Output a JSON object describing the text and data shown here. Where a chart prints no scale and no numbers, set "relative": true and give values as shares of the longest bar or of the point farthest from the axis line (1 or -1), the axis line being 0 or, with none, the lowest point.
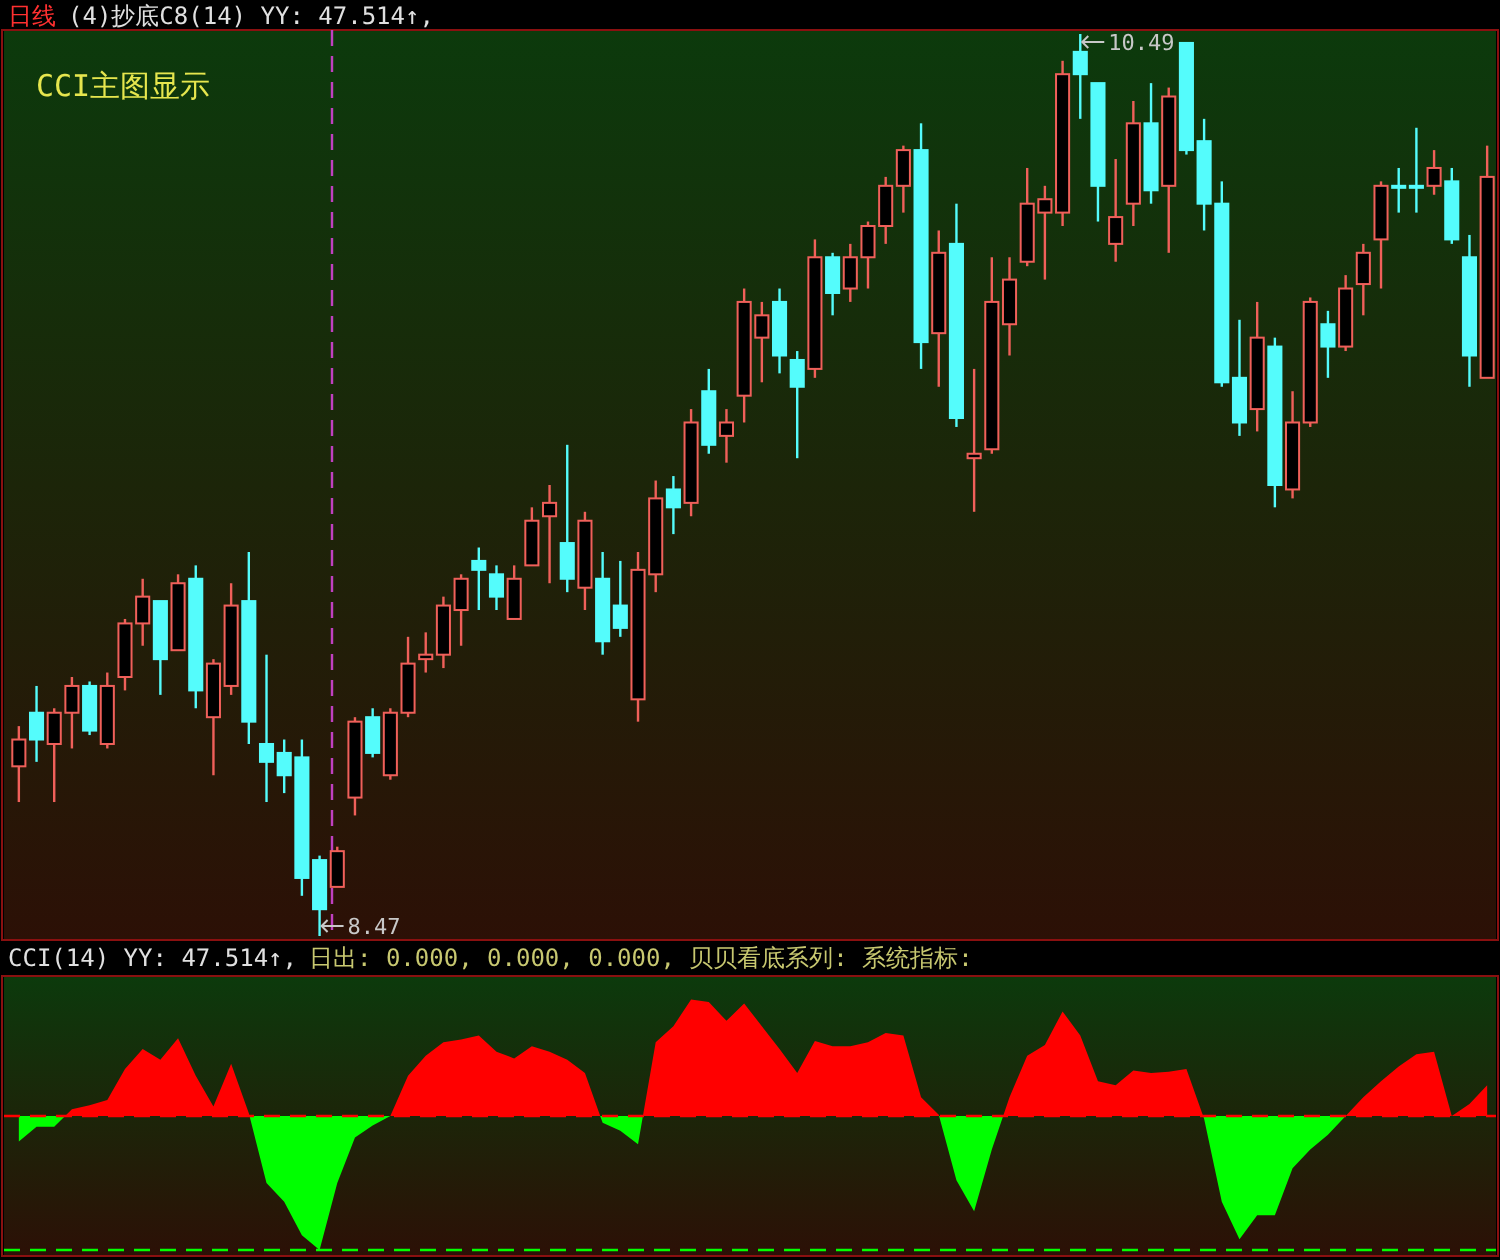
{
  "chart_data": [
    {
      "type": "candlestick",
      "title": "日线",
      "subtitle": "(4)抄底C8(14) YY: 47.514↑,",
      "categories": [
        null,
        null,
        null,
        null,
        null,
        null,
        null,
        null,
        null,
        null,
        null,
        null,
        null,
        null,
        null,
        null,
        null,
        null,
        null,
        null,
        null,
        null,
        null,
        null,
        null,
        null,
        null,
        null,
        null,
        null,
        null,
        null,
        null,
        null,
        null,
        null,
        null,
        null,
        null,
        null,
        null,
        null,
        null,
        null,
        null,
        null,
        null,
        null,
        null,
        null,
        null,
        null,
        null,
        null,
        null,
        null,
        null,
        null,
        null,
        null,
        null,
        null,
        null,
        null,
        null,
        null,
        null,
        null,
        null,
        null,
        null,
        null,
        null,
        null,
        null,
        null,
        null,
        null,
        null,
        null,
        null,
        null,
        null,
        null
      ],
      "ohlc": [
        [
          8.85,
          8.94,
          8.77,
          8.91
        ],
        [
          8.97,
          9.03,
          8.86,
          8.91
        ],
        [
          8.9,
          8.98,
          8.77,
          8.97
        ],
        [
          8.97,
          9.05,
          8.89,
          9.03
        ],
        [
          9.03,
          9.04,
          8.92,
          8.93
        ],
        [
          8.9,
          9.06,
          8.89,
          9.03
        ],
        [
          9.05,
          9.18,
          9.02,
          9.17
        ],
        [
          9.17,
          9.27,
          9.12,
          9.23
        ],
        [
          9.22,
          9.22,
          9.01,
          9.09
        ],
        [
          9.11,
          9.28,
          9.11,
          9.26
        ],
        [
          9.27,
          9.3,
          8.98,
          9.02
        ],
        [
          8.96,
          9.09,
          8.83,
          9.08
        ],
        [
          9.03,
          9.26,
          9.01,
          9.21
        ],
        [
          9.22,
          9.33,
          8.9,
          8.95
        ],
        [
          8.9,
          9.1,
          8.77,
          8.86
        ],
        [
          8.88,
          8.91,
          8.79,
          8.83
        ],
        [
          8.87,
          8.91,
          8.56,
          8.6
        ],
        [
          8.64,
          8.65,
          8.47,
          8.53
        ],
        [
          8.58,
          8.67,
          8.58,
          8.66
        ],
        [
          8.78,
          8.96,
          8.74,
          8.95
        ],
        [
          8.96,
          8.98,
          8.87,
          8.88
        ],
        [
          8.83,
          8.98,
          8.82,
          8.97
        ],
        [
          8.97,
          9.14,
          8.96,
          9.08
        ],
        [
          9.09,
          9.15,
          9.06,
          9.1
        ],
        [
          9.1,
          9.23,
          9.07,
          9.21
        ],
        [
          9.2,
          9.28,
          9.12,
          9.27
        ],
        [
          9.31,
          9.34,
          9.2,
          9.29
        ],
        [
          9.28,
          9.3,
          9.2,
          9.23
        ],
        [
          9.18,
          9.3,
          9.18,
          9.27
        ],
        [
          9.3,
          9.43,
          9.3,
          9.4
        ],
        [
          9.41,
          9.48,
          9.26,
          9.44
        ],
        [
          9.35,
          9.57,
          9.24,
          9.27
        ],
        [
          9.25,
          9.42,
          9.2,
          9.4
        ],
        [
          9.27,
          9.33,
          9.1,
          9.13
        ],
        [
          9.21,
          9.31,
          9.14,
          9.16
        ],
        [
          9.0,
          9.33,
          8.95,
          9.29
        ],
        [
          9.28,
          9.49,
          9.24,
          9.45
        ],
        [
          9.47,
          9.5,
          9.37,
          9.43
        ],
        [
          9.44,
          9.65,
          9.41,
          9.62
        ],
        [
          9.69,
          9.74,
          9.55,
          9.57
        ],
        [
          9.59,
          9.65,
          9.53,
          9.62
        ],
        [
          9.68,
          9.92,
          9.62,
          9.89
        ],
        [
          9.81,
          9.89,
          9.71,
          9.86
        ],
        [
          9.89,
          9.92,
          9.73,
          9.77
        ],
        [
          9.76,
          9.78,
          9.54,
          9.7
        ],
        [
          9.74,
          10.03,
          9.72,
          9.99
        ],
        [
          9.99,
          10.0,
          9.86,
          9.91
        ],
        [
          9.92,
          10.02,
          9.89,
          9.99
        ],
        [
          9.99,
          10.07,
          9.92,
          10.06
        ],
        [
          10.06,
          10.17,
          10.02,
          10.15
        ],
        [
          10.15,
          10.24,
          10.09,
          10.23
        ],
        [
          10.23,
          10.29,
          9.74,
          9.8
        ],
        [
          9.82,
          10.05,
          9.7,
          10.0
        ],
        [
          10.02,
          10.11,
          9.61,
          9.63
        ],
        [
          9.54,
          9.74,
          9.42,
          9.55
        ],
        [
          9.56,
          9.99,
          9.55,
          9.89
        ],
        [
          9.84,
          9.99,
          9.77,
          9.94
        ],
        [
          9.98,
          10.19,
          9.97,
          10.11
        ],
        [
          10.09,
          10.15,
          9.94,
          10.12
        ],
        [
          10.09,
          10.43,
          10.06,
          10.4
        ],
        [
          10.45,
          10.49,
          10.3,
          10.4
        ],
        [
          10.38,
          10.38,
          10.07,
          10.15
        ],
        [
          10.02,
          10.21,
          9.98,
          10.08
        ],
        [
          10.11,
          10.34,
          10.06,
          10.29
        ],
        [
          10.29,
          10.38,
          10.11,
          10.14
        ],
        [
          10.15,
          10.37,
          10.0,
          10.35
        ],
        [
          10.47,
          10.47,
          10.22,
          10.23
        ],
        [
          10.25,
          10.3,
          10.05,
          10.11
        ],
        [
          10.11,
          10.16,
          9.7,
          9.71
        ],
        [
          9.72,
          9.85,
          9.59,
          9.62
        ],
        [
          9.65,
          9.89,
          9.6,
          9.81
        ],
        [
          9.79,
          9.81,
          9.43,
          9.48
        ],
        [
          9.47,
          9.69,
          9.45,
          9.62
        ],
        [
          9.62,
          9.9,
          9.61,
          9.89
        ],
        [
          9.84,
          9.87,
          9.72,
          9.79
        ],
        [
          9.79,
          9.95,
          9.78,
          9.92
        ],
        [
          9.93,
          10.02,
          9.86,
          10.0
        ],
        [
          10.03,
          10.16,
          9.92,
          10.15
        ],
        [
          10.15,
          10.19,
          10.09,
          10.15
        ],
        [
          10.15,
          10.28,
          10.09,
          10.15
        ],
        [
          10.15,
          10.23,
          10.13,
          10.19
        ],
        [
          10.16,
          10.19,
          10.02,
          10.03
        ],
        [
          9.99,
          10.04,
          9.7,
          9.77
        ],
        [
          9.72,
          10.24,
          9.72,
          10.17
        ]
      ],
      "colors": [
        "#f0605a",
        "#54fcfc",
        "#f0605a",
        "#f0605a",
        "#54fcfc",
        "#f0605a",
        "#f0605a",
        "#f0605a",
        "#54fcfc",
        "#f0605a",
        "#54fcfc",
        "#f0605a",
        "#f0605a",
        "#54fcfc",
        "#54fcfc",
        "#54fcfc",
        "#54fcfc",
        "#54fcfc",
        "#f0605a",
        "#f0605a",
        "#54fcfc",
        "#f0605a",
        "#f0605a",
        "#f0605a",
        "#f0605a",
        "#f0605a",
        "#54fcfc",
        "#54fcfc",
        "#f0605a",
        "#f0605a",
        "#f0605a",
        "#54fcfc",
        "#f0605a",
        "#54fcfc",
        "#54fcfc",
        "#f0605a",
        "#f0605a",
        "#54fcfc",
        "#f0605a",
        "#54fcfc",
        "#f0605a",
        "#f0605a",
        "#f0605a",
        "#54fcfc",
        "#54fcfc",
        "#f0605a",
        "#54fcfc",
        "#f0605a",
        "#f0605a",
        "#f0605a",
        "#f0605a",
        "#54fcfc",
        "#f0605a",
        "#54fcfc",
        "#f0605a",
        "#f0605a",
        "#f0605a",
        "#f0605a",
        "#f0605a",
        "#f0605a",
        "#54fcfc",
        "#54fcfc",
        "#f0605a",
        "#f0605a",
        "#54fcfc",
        "#f0605a",
        "#54fcfc",
        "#54fcfc",
        "#54fcfc",
        "#54fcfc",
        "#f0605a",
        "#54fcfc",
        "#f0605a",
        "#f0605a",
        "#54fcfc",
        "#f0605a",
        "#f0605a",
        "#f0605a",
        "#54fcfc",
        "#54fcfc",
        "#f0605a",
        "#54fcfc",
        "#54fcfc",
        "#f0605a"
      ],
      "annotations": [
        "CCI主图显示",
        "10.49",
        "8.47"
      ]
    },
    {
      "type": "area",
      "relative": true,
      "title": "CCI(14) YY: 47.514↑,",
      "subtitle": "日出: 0.000, 0.000, 0.000, 贝贝看底系列: 系统指标:",
      "categories": [
        null,
        null,
        null,
        null,
        null,
        null,
        null,
        null,
        null,
        null,
        null,
        null,
        null,
        null,
        null,
        null,
        null,
        null,
        null,
        null,
        null,
        null,
        null,
        null,
        null,
        null,
        null,
        null,
        null,
        null,
        null,
        null,
        null,
        null,
        null,
        null,
        null,
        null,
        null,
        null,
        null,
        null,
        null,
        null,
        null,
        null,
        null,
        null,
        null,
        null,
        null,
        null,
        null,
        null,
        null,
        null,
        null,
        null,
        null,
        null,
        null,
        null,
        null,
        null,
        null,
        null,
        null,
        null,
        null,
        null,
        null,
        null,
        null,
        null,
        null,
        null,
        null,
        null,
        null,
        null,
        null,
        null,
        null,
        null
      ],
      "series": [
        {
          "values": [
            -0.19,
            -0.08,
            -0.08,
            0.05,
            0.08,
            0.12,
            0.35,
            0.5,
            0.42,
            0.58,
            0.3,
            0.07,
            0.39,
            0.02,
            -0.5,
            -0.64,
            -0.89,
            -1,
            -0.5,
            -0.16,
            -0.07,
            0,
            0.3,
            0.45,
            0.55,
            0.57,
            0.6,
            0.48,
            0.43,
            0.52,
            0.48,
            0.42,
            0.32,
            -0.05,
            -0.11,
            -0.21,
            0.55,
            0.67,
            0.87,
            0.85,
            0.71,
            0.84,
            0.67,
            0.5,
            0.32,
            0.56,
            0.52,
            0.52,
            0.55,
            0.62,
            0.6,
            0.14,
            0.01,
            -0.48,
            -0.71,
            -0.25,
            0.14,
            0.45,
            0.53,
            0.78,
            0.6,
            0.26,
            0.23,
            0.34,
            0.32,
            0.33,
            0.35,
            -0.02,
            -0.64,
            -0.92,
            -0.74,
            -0.74,
            -0.39,
            -0.25,
            -0.14,
            0,
            0.14,
            0.26,
            0.37,
            0.46,
            0.48,
            0,
            0.09,
            0.23
          ],
          "colors": [
            "#00ff00",
            "#00ff00",
            "#00ff00",
            "#ff0000",
            "#ff0000",
            "#ff0000",
            "#ff0000",
            "#ff0000",
            "#ff0000",
            "#ff0000",
            "#ff0000",
            "#ff0000",
            "#ff0000",
            "#ff0000",
            "#00ff00",
            "#00ff00",
            "#00ff00",
            "#00ff00",
            "#00ff00",
            "#00ff00",
            "#00ff00",
            "#ff0000",
            "#ff0000",
            "#ff0000",
            "#ff0000",
            "#ff0000",
            "#ff0000",
            "#ff0000",
            "#ff0000",
            "#ff0000",
            "#ff0000",
            "#ff0000",
            "#ff0000",
            "#00ff00",
            "#00ff00",
            "#00ff00",
            "#ff0000",
            "#ff0000",
            "#ff0000",
            "#ff0000",
            "#ff0000",
            "#ff0000",
            "#ff0000",
            "#ff0000",
            "#ff0000",
            "#ff0000",
            "#ff0000",
            "#ff0000",
            "#ff0000",
            "#ff0000",
            "#ff0000",
            "#ff0000",
            "#ff0000",
            "#00ff00",
            "#00ff00",
            "#00ff00",
            "#ff0000",
            "#ff0000",
            "#ff0000",
            "#ff0000",
            "#ff0000",
            "#ff0000",
            "#ff0000",
            "#ff0000",
            "#ff0000",
            "#ff0000",
            "#ff0000",
            "#00ff00",
            "#00ff00",
            "#00ff00",
            "#00ff00",
            "#00ff00",
            "#00ff00",
            "#00ff00",
            "#00ff00",
            "#ff0000",
            "#ff0000",
            "#ff0000",
            "#ff0000",
            "#ff0000",
            "#ff0000",
            "#ff0000",
            "#ff0000",
            "#ff0000"
          ]
        }
      ],
      "ref_lines": [
        {
          "axis": "y",
          "value": 0,
          "color": "#ff0000",
          "line_style": "dashed"
        },
        {
          "axis": "y",
          "value": -1,
          "color": "#00ff00",
          "line_style": "dashed"
        }
      ]
    }
  ]
}
